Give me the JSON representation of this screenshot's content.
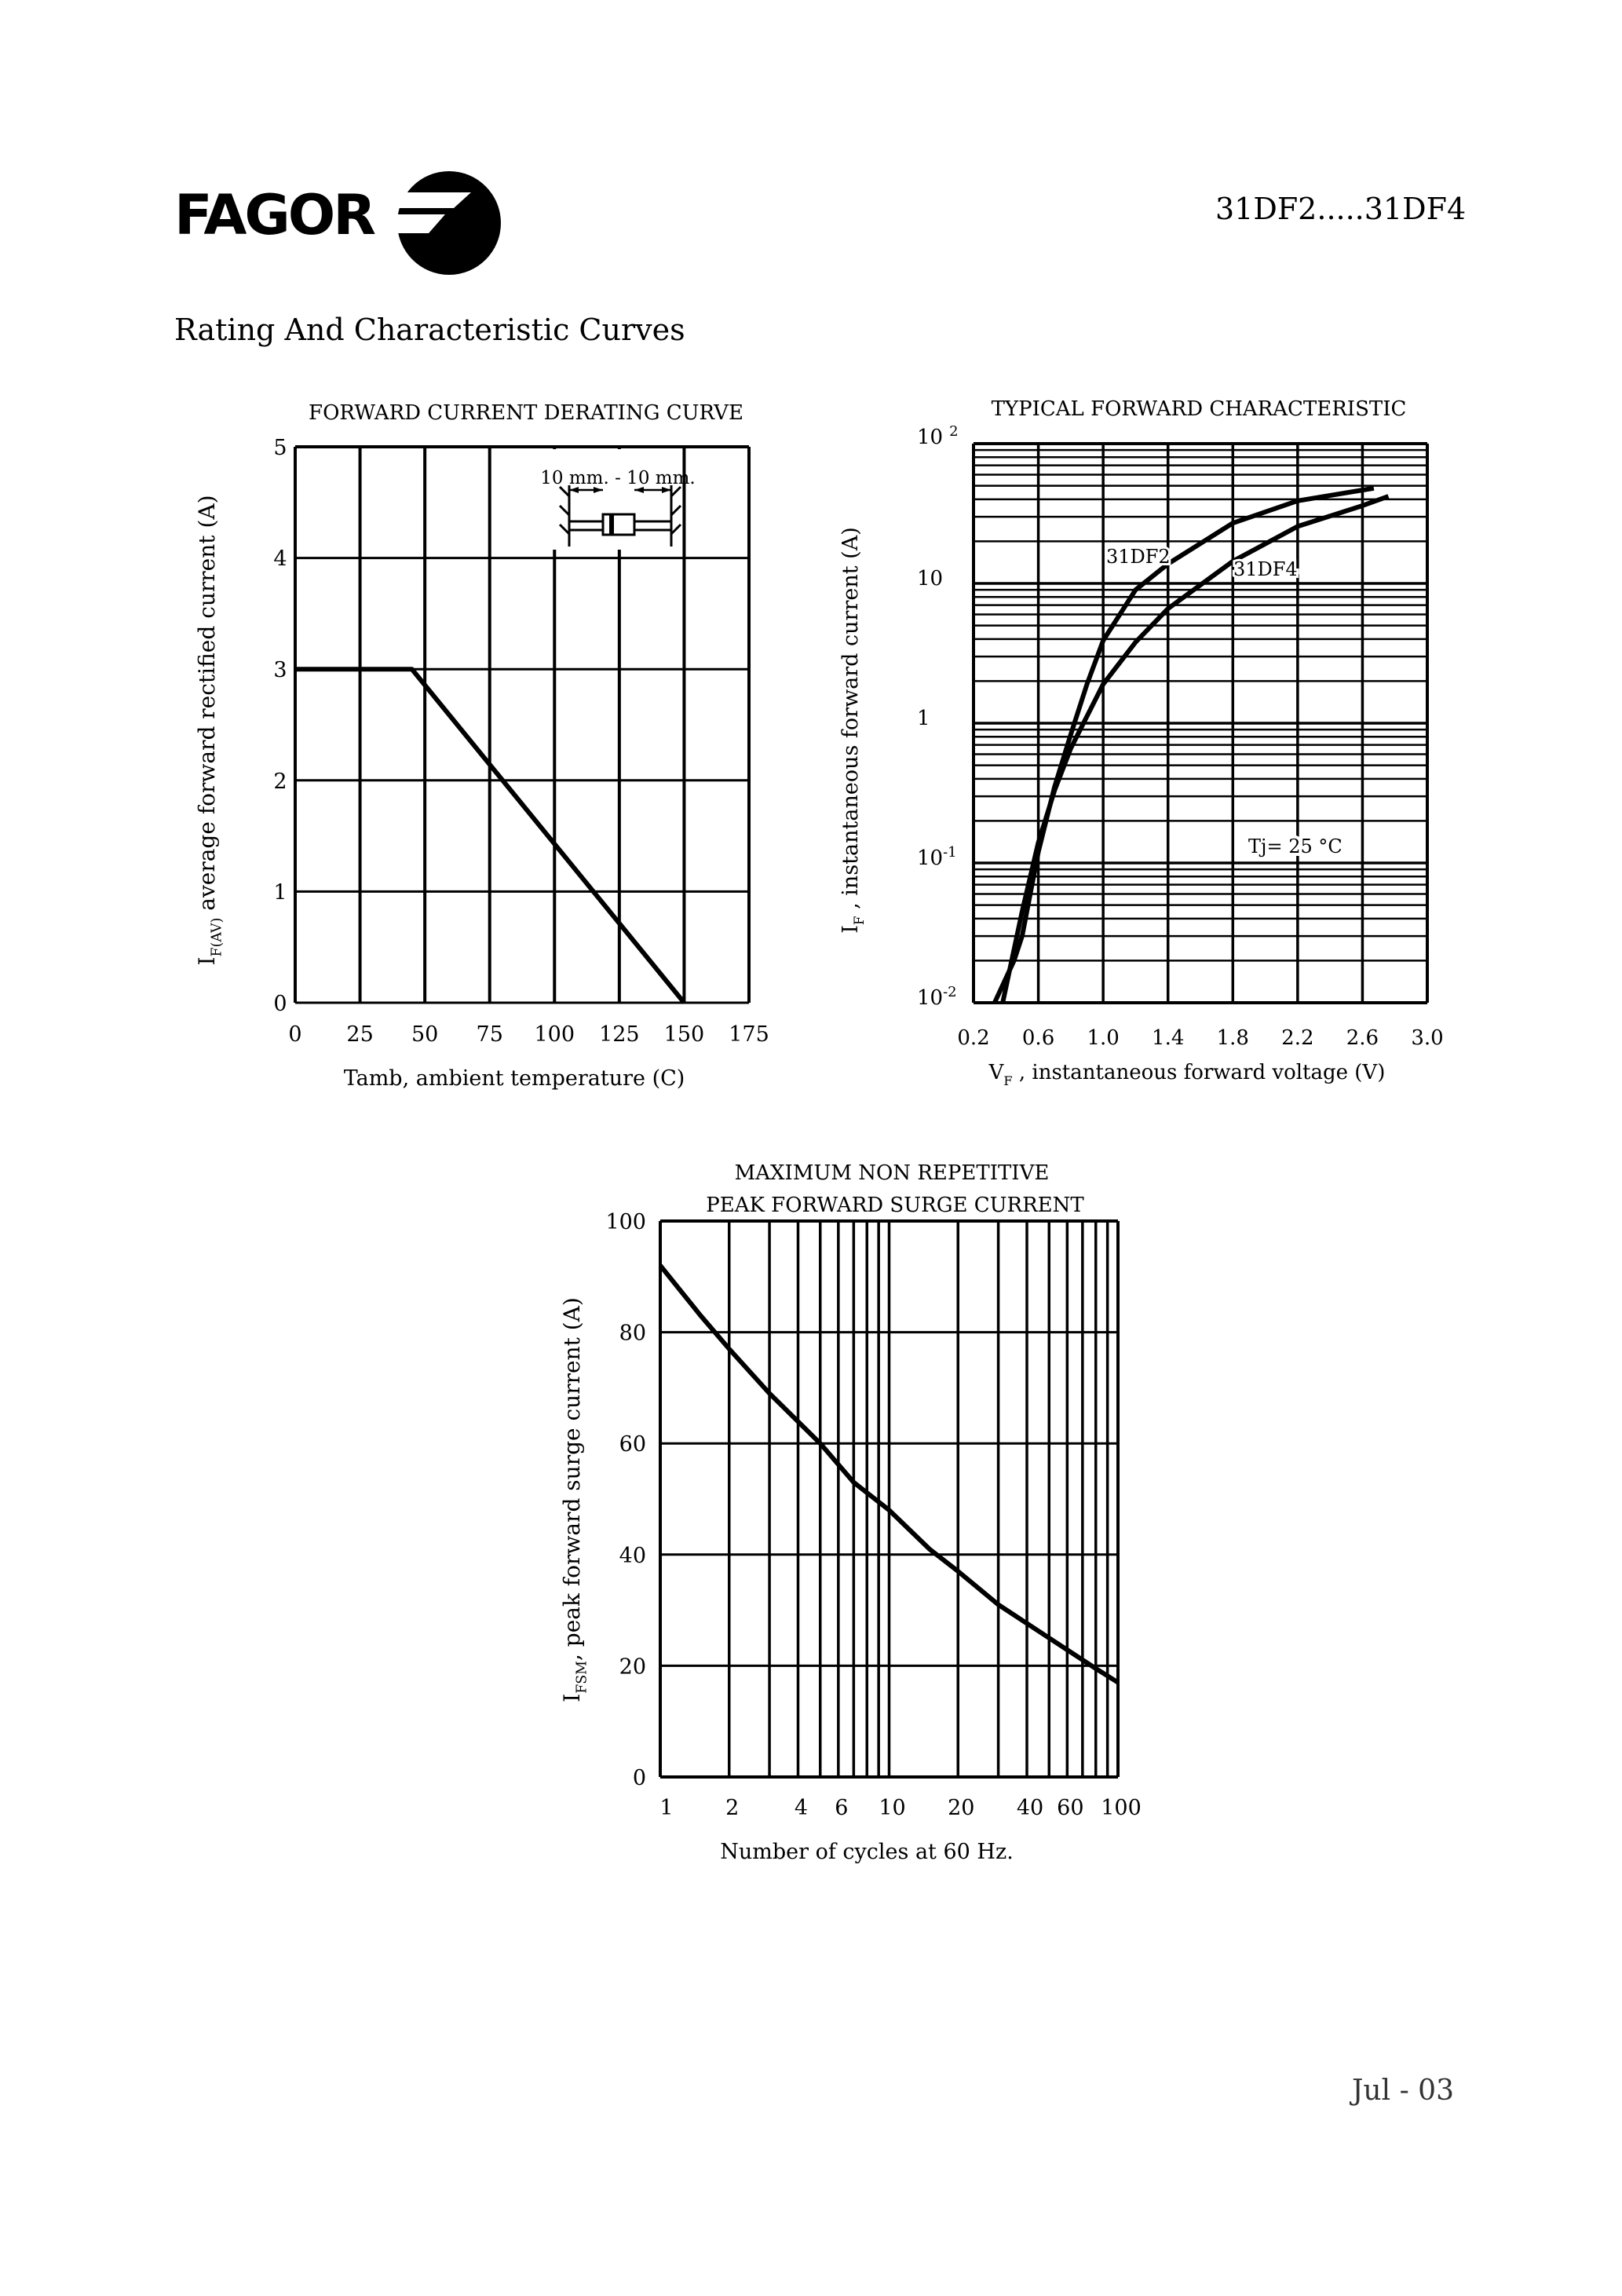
{
  "header": {
    "logo_text": "FAGOR",
    "part_number": "31DF2.....31DF4",
    "section_title": "Rating And Characteristic Curves"
  },
  "footer": {
    "date": "Jul - 03"
  },
  "chart_data": [
    {
      "type": "line",
      "title": "FORWARD CURRENT DERATING CURVE",
      "xlabel": "Tamb, ambient temperature (C)",
      "ylabel": {
        "main": "I",
        "sub": "F(AV)",
        "rest": " average forward rectified current (A)"
      },
      "xlim": [
        0,
        175
      ],
      "ylim": [
        0,
        5
      ],
      "xticks": [
        0,
        25,
        50,
        75,
        100,
        125,
        150,
        175
      ],
      "yticks": [
        0,
        1,
        2,
        3,
        4,
        5
      ],
      "grid": true,
      "inset_label": "10 mm. - 10 mm.",
      "series": [
        {
          "x": [
            0,
            45,
            150
          ],
          "y": [
            3,
            3,
            0
          ]
        }
      ]
    },
    {
      "type": "line",
      "title": "TYPICAL FORWARD CHARACTERISTIC",
      "xlabel": {
        "main": "V",
        "sub": "F",
        "rest": " , instantaneous forward voltage (V)"
      },
      "ylabel": {
        "main": "I",
        "sub": "F",
        "rest": " , instantaneous forward current  (A)"
      },
      "xlim": [
        0.2,
        3.0
      ],
      "ylim": [
        0.01,
        100
      ],
      "yscale": "log",
      "xticks": [
        "0.2",
        "0.6",
        "1.0",
        "1.4",
        "1.8",
        "2.2",
        "2.6",
        "3.0"
      ],
      "yticks": [
        {
          "base": "10",
          "exp": "2",
          "value": 100
        },
        {
          "base": "10",
          "exp": "",
          "value": 10
        },
        {
          "base": "1",
          "exp": "",
          "value": 1
        },
        {
          "base": "10",
          "exp": "-1",
          "value": 0.1
        },
        {
          "base": "10",
          "exp": "-2",
          "value": 0.01
        }
      ],
      "grid": true,
      "annotation": "Tj= 25 °C",
      "series": [
        {
          "name": "31DF2",
          "x": [
            0.33,
            0.45,
            0.5,
            0.6,
            0.7,
            0.8,
            0.9,
            1.0,
            1.2,
            1.4,
            1.8,
            2.2,
            2.67
          ],
          "y": [
            0.01,
            0.02,
            0.03,
            0.12,
            0.35,
            0.83,
            1.9,
            3.9,
            9,
            13.8,
            27,
            39,
            48
          ]
        },
        {
          "name": "31DF4",
          "x": [
            0.38,
            0.5,
            0.6,
            0.7,
            0.8,
            1.0,
            1.2,
            1.4,
            1.8,
            2.2,
            2.6,
            2.76
          ],
          "y": [
            0.01,
            0.045,
            0.14,
            0.33,
            0.66,
            1.9,
            3.8,
            6.6,
            14.4,
            25.6,
            36,
            42
          ]
        }
      ]
    },
    {
      "type": "line",
      "title": [
        "MAXIMUM NON REPETITIVE",
        "PEAK FORWARD SURGE CURRENT"
      ],
      "xlabel": "Number of cycles at 60 Hz.",
      "ylabel": {
        "main": "I",
        "sub": "FSM",
        "rest": ", peak forward surge current (A)"
      },
      "xlim": [
        1,
        100
      ],
      "xscale": "log",
      "ylim": [
        0,
        100
      ],
      "xticks": [
        1,
        2,
        4,
        6,
        10,
        20,
        40,
        60,
        100
      ],
      "yticks": [
        0,
        20,
        40,
        60,
        80,
        100
      ],
      "grid": true,
      "series": [
        {
          "x": [
            1,
            1.5,
            2,
            3,
            5,
            7,
            10,
            15,
            20,
            30,
            50,
            80,
            100
          ],
          "y": [
            92,
            83,
            77,
            69,
            60,
            53,
            48,
            41,
            37,
            31,
            25,
            19.5,
            17
          ]
        }
      ]
    }
  ]
}
